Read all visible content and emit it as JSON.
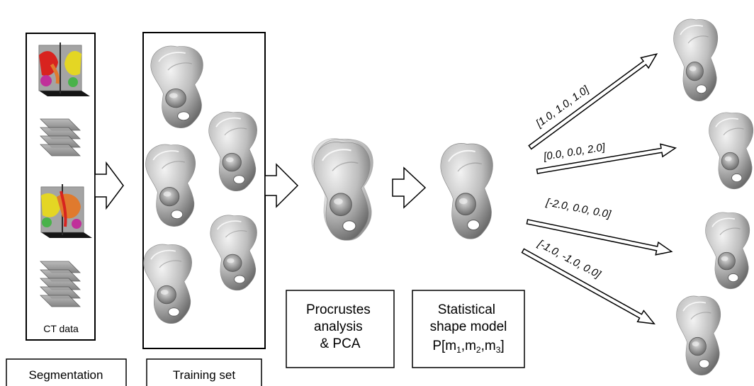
{
  "labels": {
    "ct_data": "CT data",
    "segmentation": "Segmentation",
    "training_set": "Training set",
    "procrustes": [
      "Procrustes",
      "analysis",
      "& PCA"
    ],
    "ssm": [
      "Statistical",
      "shape model"
    ],
    "ssm_formula": {
      "p": "P[m",
      "sub1": "1",
      "c1": ",m",
      "sub2": "2",
      "c2": ",m",
      "sub3": "3",
      "close": "]"
    }
  },
  "shape_vectors": [
    "[1.0, 1.0, 1.0]",
    "[0.0, 0.0, 2.0]",
    "[-2.0, 0.0, 0.0]",
    "[-1.0, -1.0, 0.0]"
  ],
  "colors": {
    "bone": "#b9b9b9",
    "bone_dark": "#6d6d6d",
    "bone_light": "#f1f1f1",
    "ct_red": "#d8231f",
    "ct_yellow": "#e4d624",
    "ct_green": "#49b24a",
    "ct_magenta": "#c0309a",
    "ct_orange": "#e07a2e"
  }
}
